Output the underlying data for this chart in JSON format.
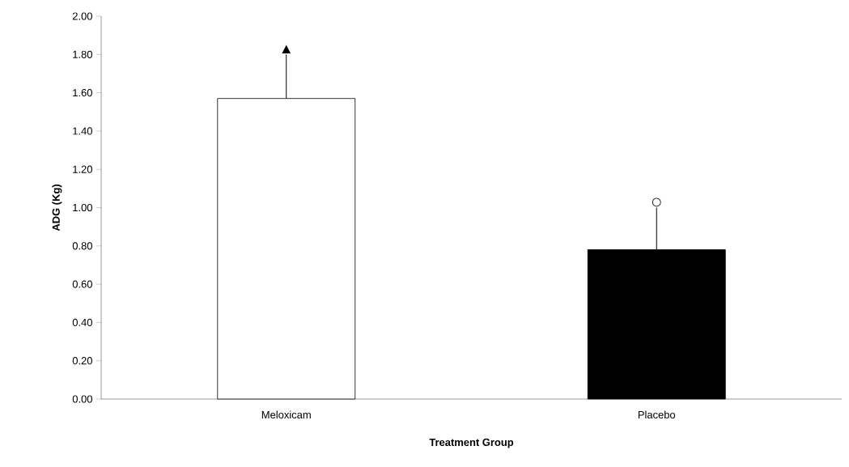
{
  "chart_data": {
    "type": "bar",
    "xlabel": "Treatment Group",
    "ylabel": "ADG  (Kg)",
    "categories": [
      "Meloxicam",
      "Placebo"
    ],
    "values": [
      1.57,
      0.78
    ],
    "colors": [
      "#ffffff",
      "#000000"
    ],
    "errors": [
      [
        1.57,
        1.8
      ],
      [
        0.78,
        1.0
      ]
    ],
    "ylim": [
      0,
      2
    ],
    "yticks": [
      {
        "value": 0,
        "label": "0.00"
      },
      {
        "value": 0.2,
        "label": "0.20"
      },
      {
        "value": 0.4,
        "label": "0.40"
      },
      {
        "value": 0.6,
        "label": "0.60"
      },
      {
        "value": 0.8,
        "label": "0.80"
      },
      {
        "value": 1.0,
        "label": "1.00"
      },
      {
        "value": 1.2,
        "label": "1.20"
      },
      {
        "value": 1.4,
        "label": "1.40"
      },
      {
        "value": 1.6,
        "label": "1.60"
      },
      {
        "value": 1.8,
        "label": "1.80"
      },
      {
        "value": 2.0,
        "label": "2.00"
      }
    ],
    "annotations": [
      "▲",
      "○"
    ],
    "grid": false
  }
}
